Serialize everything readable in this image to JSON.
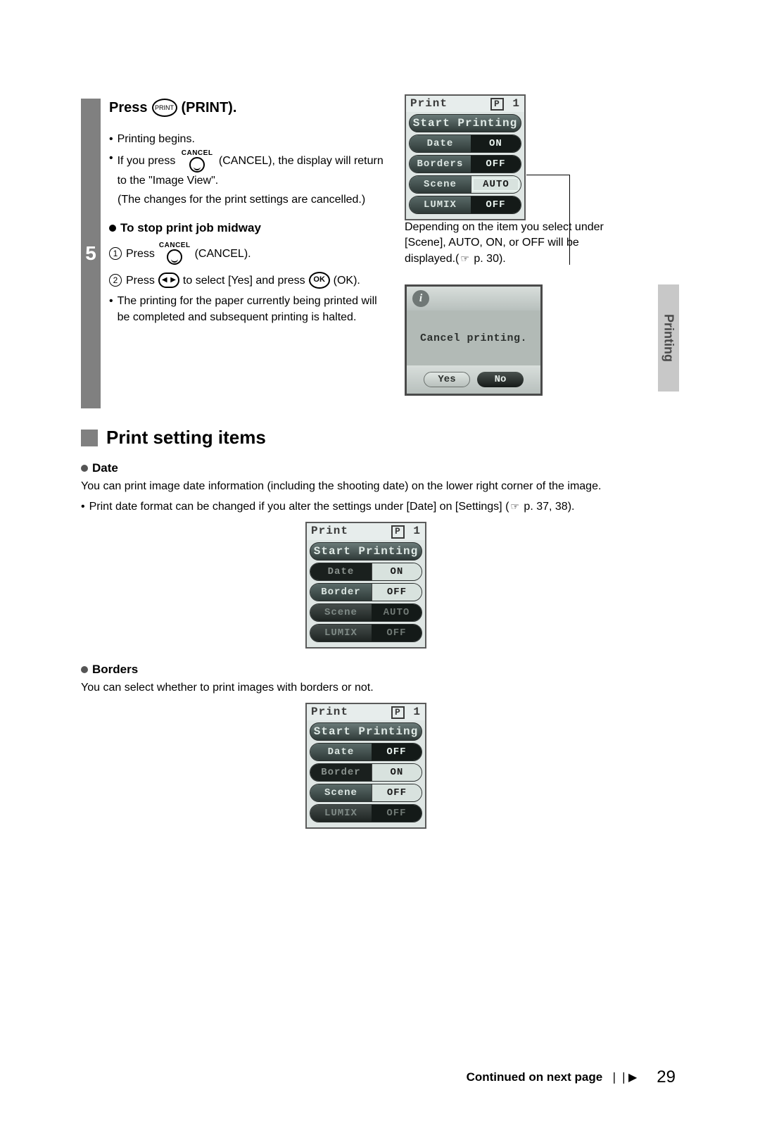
{
  "page_number": "29",
  "footer_text": "Continued on next page",
  "side_tab": "Printing",
  "step": {
    "number": "5",
    "header_pre": "Press",
    "header_icon_text": "PRINT",
    "header_post": "(PRINT).",
    "b1": "Printing begins.",
    "b2a": "If you press",
    "b2_cancel_label": "CANCEL",
    "b2b": "(CANCEL), the display will return to the \"Image View\".",
    "b2c": "(The changes for the print settings are cancelled.)",
    "sub_title": "To stop print job midway",
    "s1_pre": "Press",
    "s1_post": "(CANCEL).",
    "s2_pre": "Press",
    "s2_mid": "to select [Yes] and press",
    "s2_ok": "OK",
    "s2_post": "(OK).",
    "note": "The printing for the paper currently being printed will be completed and subsequent printing is halted."
  },
  "lcd1": {
    "title": "Print",
    "badge": "P",
    "count": "1",
    "start": "Start Printing",
    "rows": [
      {
        "label": "Date",
        "value": "ON",
        "style": "normal"
      },
      {
        "label": "Borders",
        "value": "OFF",
        "style": "normal"
      },
      {
        "label": "Scene",
        "value": "AUTO",
        "style": "highlight-box"
      },
      {
        "label": "LUMIX",
        "value": "OFF",
        "style": "normal"
      }
    ]
  },
  "caption1": {
    "l1": "Depending on the item you select under [Scene], AUTO, ON, or OFF will be displayed.(",
    "ref": "p. 30).",
    "ref_icon": "☞"
  },
  "cancel_dialog": {
    "msg": "Cancel printing.",
    "yes": "Yes",
    "no": "No"
  },
  "section": {
    "title": "Print setting items",
    "date_hdr": "Date",
    "date_p1": "You can print image date information (including the shooting date) on the lower right corner of the image.",
    "date_b1a": "Print date format can be changed if you alter the settings under [Date] on [Settings] (",
    "date_b1_ref": "p. 37, 38).",
    "borders_hdr": "Borders",
    "borders_p1": "You can select whether to print images with borders or not."
  },
  "lcd2": {
    "title": "Print",
    "badge": "P",
    "count": "1",
    "start": "Start Printing",
    "rows": [
      {
        "label": "Date",
        "value": "ON",
        "style": "sel-highlight"
      },
      {
        "label": "Border",
        "value": "OFF",
        "style": "highlight"
      },
      {
        "label": "Scene",
        "value": "AUTO",
        "style": "dim"
      },
      {
        "label": "LUMIX",
        "value": "OFF",
        "style": "dim"
      }
    ]
  },
  "lcd3": {
    "title": "Print",
    "badge": "P",
    "count": "1",
    "start": "Start Printing",
    "rows": [
      {
        "label": "Date",
        "value": "OFF",
        "style": "normal"
      },
      {
        "label": "Border",
        "value": "ON",
        "style": "sel-highlight"
      },
      {
        "label": "Scene",
        "value": "OFF",
        "style": "highlight"
      },
      {
        "label": "LUMIX",
        "value": "OFF",
        "style": "dim"
      }
    ]
  },
  "colors": {
    "bar": "#808080",
    "lcd_bg": "#dfe6e4",
    "lcd_dark": "#141a18"
  }
}
